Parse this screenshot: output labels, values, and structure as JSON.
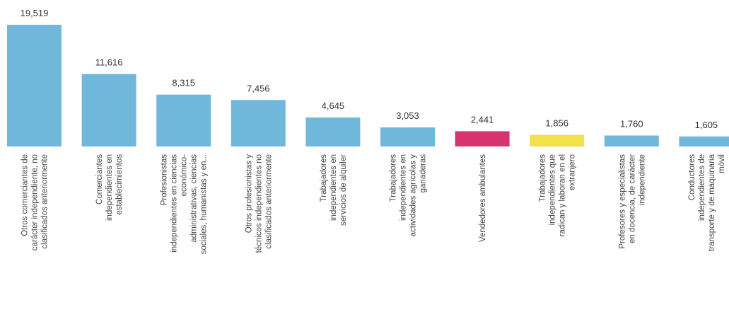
{
  "chart_data": {
    "type": "bar",
    "orientation": "vertical",
    "title": "",
    "xlabel": "",
    "ylabel": "",
    "ylim": [
      0,
      19519
    ],
    "grid": false,
    "legend": "none",
    "categories": [
      [
        "Otros comerciantes de",
        "carácter independiente, no",
        "clasificados anteriormente"
      ],
      [
        "Comerciantes",
        "independientes en",
        "establecimientos"
      ],
      [
        "Profesionistas",
        "independientes en ciencias",
        "económico-",
        "administrativas, ciencias",
        "sociales, humanistas y en..."
      ],
      [
        "Otros profesionistas y",
        "técnicos independientes no",
        "clasificados anteriormente"
      ],
      [
        "Trabajadores",
        "independientes en",
        "servicios de alquiler"
      ],
      [
        "Trabajadores",
        "independientes en",
        "actividades agrícolas y",
        "ganaderas"
      ],
      [
        "Vendedores ambulantes"
      ],
      [
        "Trabajadores",
        "independientes que",
        "radican y laboran en el",
        "extranjero"
      ],
      [
        "Profesores y especialistas",
        "en docencia, de carácter",
        "independiente"
      ],
      [
        "Conductores",
        "independientes de",
        "transporte y de maquinaria",
        "móvil"
      ]
    ],
    "values": [
      19519,
      11616,
      8315,
      7456,
      4645,
      3053,
      2441,
      1856,
      1760,
      1605
    ],
    "value_labels": [
      "19,519",
      "11,616",
      "8,315",
      "7,456",
      "4,645",
      "3,053",
      "2,441",
      "1,856",
      "1,760",
      "1,605"
    ],
    "colors": [
      "#6fb8dc",
      "#6fb8dc",
      "#6fb8dc",
      "#6fb8dc",
      "#6fb8dc",
      "#6fb8dc",
      "#d6336f",
      "#f2e24a",
      "#6fb8dc",
      "#6fb8dc"
    ]
  }
}
